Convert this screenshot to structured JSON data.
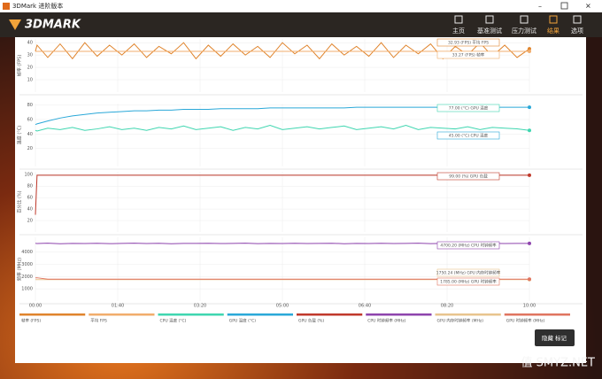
{
  "window": {
    "title": "3DMark 进阶版本"
  },
  "header": {
    "logo": "3DMARK",
    "nav": [
      "主页",
      "基准测试",
      "压力测试",
      "结果",
      "选项"
    ],
    "active": 3
  },
  "x": [
    0,
    2,
    15,
    30,
    45,
    60,
    75,
    90,
    105,
    120,
    135,
    150,
    165,
    180,
    195,
    210,
    225,
    240,
    255,
    270,
    285,
    300,
    315,
    330,
    345,
    360,
    375,
    390,
    405,
    420,
    435,
    450,
    465,
    480,
    495,
    510,
    525,
    540,
    555,
    570,
    585,
    600
  ],
  "xlim": [
    0,
    600
  ],
  "xticks": [
    {
      "value": 0,
      "label": "00:00"
    },
    {
      "value": 100,
      "label": "01:40"
    },
    {
      "value": 200,
      "label": "03:20"
    },
    {
      "value": 300,
      "label": "05:00"
    },
    {
      "value": 400,
      "label": "06:40"
    },
    {
      "value": 500,
      "label": "08:20"
    },
    {
      "value": 600,
      "label": "10:00"
    }
  ],
  "panels": [
    {
      "ylabel": "帧率 (FPS)",
      "ylim": [
        0,
        43
      ],
      "yticks": [
        40,
        30,
        20,
        10
      ],
      "series": [
        {
          "name": "帧率 (FPS)",
          "color": "#e0842c",
          "values": [
            33,
            38,
            28,
            39,
            27,
            40,
            29,
            38,
            30,
            39,
            28,
            37,
            31,
            40,
            27,
            38,
            29,
            39,
            30,
            37,
            28,
            40,
            31,
            38,
            27,
            39,
            30,
            37,
            29,
            40,
            28,
            38,
            31,
            39,
            27,
            37,
            30,
            40,
            29,
            38,
            28,
            35
          ]
        },
        {
          "name": "平均 FPS",
          "color": "#f1ad6c",
          "values": [
            32.93,
            32.93,
            32.93,
            32.93,
            32.93,
            32.93,
            32.93,
            32.93,
            32.93,
            32.93,
            32.93,
            32.93,
            32.93,
            32.93,
            32.93,
            32.93,
            32.93,
            32.93,
            32.93,
            32.93,
            32.93,
            32.93,
            32.93,
            32.93,
            32.93,
            32.93,
            32.93,
            32.93,
            32.93,
            32.93,
            32.93,
            32.93,
            32.93,
            32.93,
            32.93,
            32.93,
            32.93,
            32.93,
            32.93,
            32.93,
            32.93,
            32.93
          ]
        }
      ],
      "annotations": [
        "32.93 (FPS) 平均 FPS",
        "33.27 (FPS) 帧率"
      ]
    },
    {
      "ylabel": "温度 (°C)",
      "ylim": [
        -5,
        82
      ],
      "yticks": [
        80,
        60,
        40,
        20
      ],
      "series": [
        {
          "name": "CPU 温度 (°C)",
          "color": "#3fd6b0",
          "values": [
            45,
            44,
            48,
            46,
            49,
            45,
            47,
            50,
            46,
            48,
            45,
            49,
            47,
            51,
            46,
            48,
            50,
            45,
            49,
            47,
            52,
            46,
            48,
            50,
            47,
            49,
            51,
            46,
            48,
            50,
            47,
            52,
            46,
            49,
            48,
            47,
            50,
            46,
            49,
            48,
            47,
            45
          ]
        },
        {
          "name": "GPU 温度 (°C)",
          "color": "#2aa8d8",
          "values": [
            53,
            54,
            58,
            62,
            65,
            67,
            69,
            70,
            71,
            72,
            72,
            73,
            73,
            74,
            74,
            74,
            75,
            75,
            75,
            75,
            76,
            76,
            76,
            76,
            76,
            76,
            76,
            77,
            77,
            77,
            77,
            77,
            77,
            77,
            77,
            77,
            77,
            77,
            77,
            77,
            77,
            77
          ]
        }
      ],
      "annotations": [
        "77.00 (°C) GPU 温度",
        "45.00 (°C) CPU 温度"
      ]
    },
    {
      "ylabel": "百分比 (%)",
      "ylim": [
        0,
        105
      ],
      "yticks": [
        100,
        80,
        60,
        40,
        20
      ],
      "series": [
        {
          "name": "GPU 负载 (%)",
          "color": "#c0392b",
          "values": [
            30,
            99,
            99,
            99,
            99,
            99,
            99,
            99,
            99,
            99,
            99,
            99,
            99,
            99,
            99,
            99,
            99,
            99,
            99,
            99,
            99,
            99,
            99,
            99,
            99,
            99,
            99,
            99,
            99,
            99,
            99,
            99,
            99,
            99,
            99,
            99,
            99,
            99,
            99,
            99,
            99,
            99
          ]
        }
      ],
      "annotations": [
        "99.00 (%) GPU 负载"
      ]
    },
    {
      "ylabel": "频率 (MHz)",
      "ylim": [
        0,
        5200
      ],
      "yticks": [
        4000,
        3000,
        2000,
        1000
      ],
      "series": [
        {
          "name": "CPU 时钟频率 (MHz)",
          "color": "#8e44ad",
          "values": [
            4710,
            4690,
            4720,
            4680,
            4705,
            4695,
            4715,
            4685,
            4700,
            4720,
            4690,
            4710,
            4680,
            4705,
            4700,
            4715,
            4690,
            4700,
            4720,
            4685,
            4705,
            4695,
            4710,
            4690,
            4700,
            4715,
            4680,
            4705,
            4695,
            4710,
            4690,
            4700,
            4720,
            4685,
            4705,
            4700,
            4690,
            4710,
            4700,
            4695,
            4705,
            4700
          ]
        },
        {
          "name": "GPU 内存时钟频率 (MHz)",
          "color": "#e8c48e",
          "values": [
            1750.24,
            1750.24,
            1750.24,
            1750.24,
            1750.24,
            1750.24,
            1750.24,
            1750.24,
            1750.24,
            1750.24,
            1750.24,
            1750.24,
            1750.24,
            1750.24,
            1750.24,
            1750.24,
            1750.24,
            1750.24,
            1750.24,
            1750.24,
            1750.24,
            1750.24,
            1750.24,
            1750.24,
            1750.24,
            1750.24,
            1750.24,
            1750.24,
            1750.24,
            1750.24,
            1750.24,
            1750.24,
            1750.24,
            1750.24,
            1750.24,
            1750.24,
            1750.24,
            1750.24,
            1750.24,
            1750.24,
            1750.24,
            1750.24
          ]
        },
        {
          "name": "GPU 时钟频率 (MHz)",
          "color": "#e07560",
          "values": [
            1900,
            1900,
            1785,
            1785,
            1785,
            1785,
            1785,
            1785,
            1785,
            1785,
            1785,
            1785,
            1785,
            1785,
            1785,
            1785,
            1785,
            1785,
            1785,
            1785,
            1785,
            1785,
            1785,
            1785,
            1785,
            1785,
            1785,
            1785,
            1785,
            1785,
            1785,
            1785,
            1785,
            1785,
            1785,
            1785,
            1785,
            1785,
            1785,
            1785,
            1785,
            1785
          ]
        }
      ],
      "annotations": [
        "4700.20 (MHz) CPU 时钟频率",
        "1750.24 (MHz) GPU 内存时钟频率",
        "1785.00 (MHz) GPU 时钟频率"
      ]
    }
  ],
  "button": "隐藏 标记",
  "watermark": "值 SMYZ.NET"
}
